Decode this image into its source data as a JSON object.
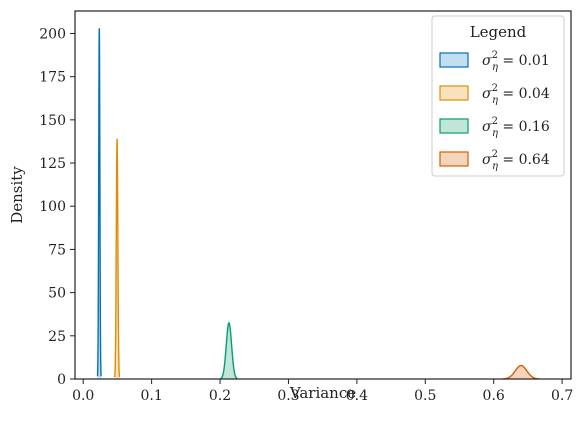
{
  "chart_data": {
    "type": "area",
    "xlabel": "Variance",
    "ylabel": "Density",
    "xlim": [
      -0.012,
      0.713
    ],
    "ylim": [
      0,
      213
    ],
    "x_ticks": [
      0.0,
      0.1,
      0.2,
      0.3,
      0.4,
      0.5,
      0.6,
      0.7
    ],
    "x_tick_labels": [
      "0.0",
      "0.1",
      "0.2",
      "0.3",
      "0.4",
      "0.5",
      "0.6",
      "0.7"
    ],
    "y_ticks": [
      0,
      25,
      50,
      75,
      100,
      125,
      150,
      175,
      200
    ],
    "y_tick_labels": [
      "0",
      "25",
      "50",
      "75",
      "100",
      "125",
      "150",
      "175",
      "200"
    ],
    "grid": false,
    "legend": {
      "title": "Legend",
      "placement": "top-right",
      "entries": [
        {
          "symbol": "σ",
          "sup": "2",
          "sub": "η",
          "value": " = 0.01"
        },
        {
          "symbol": "σ",
          "sup": "2",
          "sub": "η",
          "value": " = 0.04"
        },
        {
          "symbol": "σ",
          "sup": "2",
          "sub": "η",
          "value": " = 0.16"
        },
        {
          "symbol": "σ",
          "sup": "2",
          "sub": "η",
          "value": " = 0.64"
        }
      ]
    },
    "series": [
      {
        "center": 0.0235,
        "peak": 203,
        "half_width": 0.0012,
        "color": "#0173b2",
        "fill": "#c3def0"
      },
      {
        "center": 0.0495,
        "peak": 139,
        "half_width": 0.0016,
        "color": "#de8f05",
        "fill": "#f8e1bd"
      },
      {
        "center": 0.213,
        "peak": 32.5,
        "half_width": 0.0055,
        "color": "#029e73",
        "fill": "#c0e6da"
      },
      {
        "center": 0.64,
        "peak": 7.8,
        "half_width": 0.012,
        "color": "#d55e00",
        "fill": "#f4d4bb"
      }
    ]
  }
}
